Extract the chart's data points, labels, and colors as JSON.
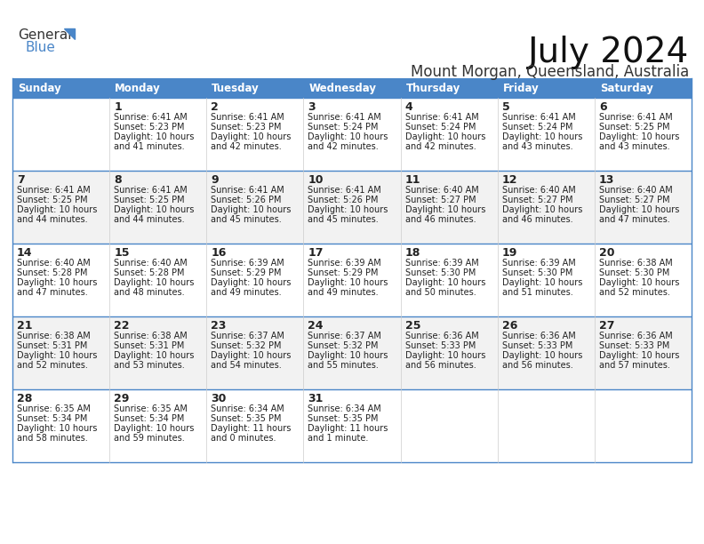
{
  "title": "July 2024",
  "subtitle": "Mount Morgan, Queensland, Australia",
  "header_bg": "#4a86c8",
  "header_text_color": "#ffffff",
  "days_of_week": [
    "Sunday",
    "Monday",
    "Tuesday",
    "Wednesday",
    "Thursday",
    "Friday",
    "Saturday"
  ],
  "row_bg_light": "#f2f2f2",
  "row_bg_white": "#ffffff",
  "cell_text_color": "#222222",
  "grid_line_color": "#4a86c8",
  "sep_line_color": "#b0c4de",
  "calendar_data": [
    [
      {
        "day": "",
        "sunrise": "",
        "sunset": "",
        "daylight": ""
      },
      {
        "day": "1",
        "sunrise": "6:41 AM",
        "sunset": "5:23 PM",
        "daylight": "10 hours and 41 minutes."
      },
      {
        "day": "2",
        "sunrise": "6:41 AM",
        "sunset": "5:23 PM",
        "daylight": "10 hours and 42 minutes."
      },
      {
        "day": "3",
        "sunrise": "6:41 AM",
        "sunset": "5:24 PM",
        "daylight": "10 hours and 42 minutes."
      },
      {
        "day": "4",
        "sunrise": "6:41 AM",
        "sunset": "5:24 PM",
        "daylight": "10 hours and 42 minutes."
      },
      {
        "day": "5",
        "sunrise": "6:41 AM",
        "sunset": "5:24 PM",
        "daylight": "10 hours and 43 minutes."
      },
      {
        "day": "6",
        "sunrise": "6:41 AM",
        "sunset": "5:25 PM",
        "daylight": "10 hours and 43 minutes."
      }
    ],
    [
      {
        "day": "7",
        "sunrise": "6:41 AM",
        "sunset": "5:25 PM",
        "daylight": "10 hours and 44 minutes."
      },
      {
        "day": "8",
        "sunrise": "6:41 AM",
        "sunset": "5:25 PM",
        "daylight": "10 hours and 44 minutes."
      },
      {
        "day": "9",
        "sunrise": "6:41 AM",
        "sunset": "5:26 PM",
        "daylight": "10 hours and 45 minutes."
      },
      {
        "day": "10",
        "sunrise": "6:41 AM",
        "sunset": "5:26 PM",
        "daylight": "10 hours and 45 minutes."
      },
      {
        "day": "11",
        "sunrise": "6:40 AM",
        "sunset": "5:27 PM",
        "daylight": "10 hours and 46 minutes."
      },
      {
        "day": "12",
        "sunrise": "6:40 AM",
        "sunset": "5:27 PM",
        "daylight": "10 hours and 46 minutes."
      },
      {
        "day": "13",
        "sunrise": "6:40 AM",
        "sunset": "5:27 PM",
        "daylight": "10 hours and 47 minutes."
      }
    ],
    [
      {
        "day": "14",
        "sunrise": "6:40 AM",
        "sunset": "5:28 PM",
        "daylight": "10 hours and 47 minutes."
      },
      {
        "day": "15",
        "sunrise": "6:40 AM",
        "sunset": "5:28 PM",
        "daylight": "10 hours and 48 minutes."
      },
      {
        "day": "16",
        "sunrise": "6:39 AM",
        "sunset": "5:29 PM",
        "daylight": "10 hours and 49 minutes."
      },
      {
        "day": "17",
        "sunrise": "6:39 AM",
        "sunset": "5:29 PM",
        "daylight": "10 hours and 49 minutes."
      },
      {
        "day": "18",
        "sunrise": "6:39 AM",
        "sunset": "5:30 PM",
        "daylight": "10 hours and 50 minutes."
      },
      {
        "day": "19",
        "sunrise": "6:39 AM",
        "sunset": "5:30 PM",
        "daylight": "10 hours and 51 minutes."
      },
      {
        "day": "20",
        "sunrise": "6:38 AM",
        "sunset": "5:30 PM",
        "daylight": "10 hours and 52 minutes."
      }
    ],
    [
      {
        "day": "21",
        "sunrise": "6:38 AM",
        "sunset": "5:31 PM",
        "daylight": "10 hours and 52 minutes."
      },
      {
        "day": "22",
        "sunrise": "6:38 AM",
        "sunset": "5:31 PM",
        "daylight": "10 hours and 53 minutes."
      },
      {
        "day": "23",
        "sunrise": "6:37 AM",
        "sunset": "5:32 PM",
        "daylight": "10 hours and 54 minutes."
      },
      {
        "day": "24",
        "sunrise": "6:37 AM",
        "sunset": "5:32 PM",
        "daylight": "10 hours and 55 minutes."
      },
      {
        "day": "25",
        "sunrise": "6:36 AM",
        "sunset": "5:33 PM",
        "daylight": "10 hours and 56 minutes."
      },
      {
        "day": "26",
        "sunrise": "6:36 AM",
        "sunset": "5:33 PM",
        "daylight": "10 hours and 56 minutes."
      },
      {
        "day": "27",
        "sunrise": "6:36 AM",
        "sunset": "5:33 PM",
        "daylight": "10 hours and 57 minutes."
      }
    ],
    [
      {
        "day": "28",
        "sunrise": "6:35 AM",
        "sunset": "5:34 PM",
        "daylight": "10 hours and 58 minutes."
      },
      {
        "day": "29",
        "sunrise": "6:35 AM",
        "sunset": "5:34 PM",
        "daylight": "10 hours and 59 minutes."
      },
      {
        "day": "30",
        "sunrise": "6:34 AM",
        "sunset": "5:35 PM",
        "daylight": "11 hours and 0 minutes."
      },
      {
        "day": "31",
        "sunrise": "6:34 AM",
        "sunset": "5:35 PM",
        "daylight": "11 hours and 1 minute."
      },
      {
        "day": "",
        "sunrise": "",
        "sunset": "",
        "daylight": ""
      },
      {
        "day": "",
        "sunrise": "",
        "sunset": "",
        "daylight": ""
      },
      {
        "day": "",
        "sunrise": "",
        "sunset": "",
        "daylight": ""
      }
    ]
  ]
}
